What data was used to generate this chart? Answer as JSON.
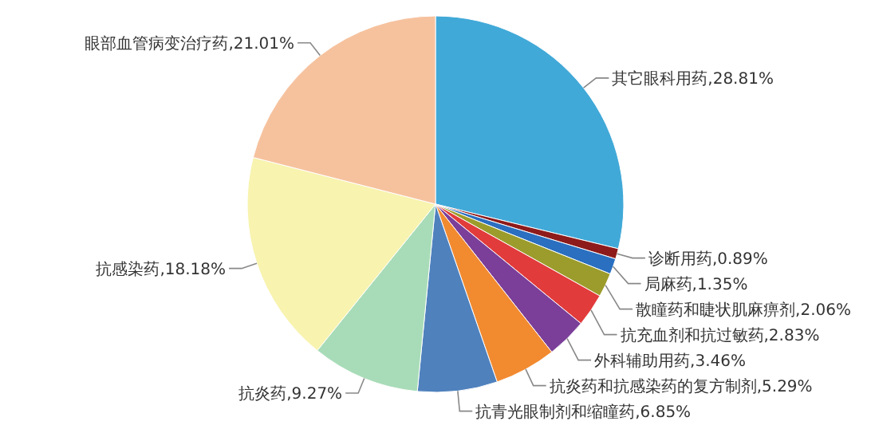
{
  "chart_data": {
    "type": "pie",
    "categories": [
      "其它眼科用药",
      "诊断用药",
      "局麻药",
      "散瞳药和睫状肌麻痹剂",
      "抗充血剂和抗过敏药",
      "外科辅助用药",
      "抗炎药和抗感染药的复方制剂",
      "抗青光眼制剂和缩瞳药",
      "抗炎药",
      "抗感染药",
      "眼部血管病变治疗药"
    ],
    "values": [
      28.81,
      0.89,
      1.35,
      2.06,
      2.83,
      3.46,
      5.29,
      6.85,
      9.27,
      18.18,
      21.01
    ],
    "value_labels": [
      "28.81%",
      "0.89%",
      "1.35%",
      "2.06%",
      "2.83%",
      "3.46%",
      "5.29%",
      "6.85%",
      "9.27%",
      "18.18%",
      "21.01%"
    ],
    "colors": [
      "#41a9d8",
      "#8e1b1b",
      "#2a6fc0",
      "#9c9c2c",
      "#e23b3b",
      "#7b3f99",
      "#f28a30",
      "#4f81bd",
      "#a8dcb8",
      "#f8f3ae",
      "#f6c29e"
    ]
  }
}
